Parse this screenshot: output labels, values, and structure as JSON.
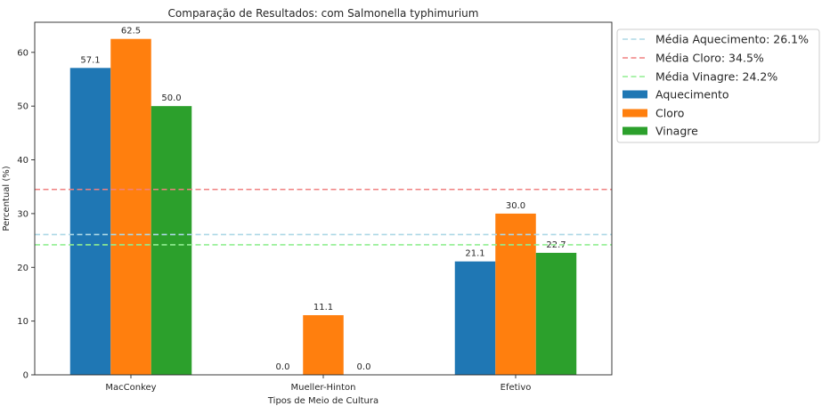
{
  "chart_data": {
    "type": "bar",
    "title": "Comparação de Resultados: com Salmonella typhimurium",
    "xlabel": "Tipos de Meio de Cultura",
    "ylabel": "Percentual (%)",
    "categories": [
      "MacConkey",
      "Mueller-Hinton",
      "Efetivo"
    ],
    "ylim": [
      0,
      65.6
    ],
    "yticks": [
      0,
      10,
      20,
      30,
      40,
      50,
      60
    ],
    "grid": false,
    "series": [
      {
        "name": "Aquecimento",
        "color": "#1f77b4",
        "values": [
          57.1,
          0.0,
          21.1
        ],
        "labels": [
          "57.1",
          "0.0",
          "21.1"
        ]
      },
      {
        "name": "Cloro",
        "color": "#ff7f0e",
        "values": [
          62.5,
          11.1,
          30.0
        ],
        "labels": [
          "62.5",
          "11.1",
          "30.0"
        ]
      },
      {
        "name": "Vinagre",
        "color": "#2ca02c",
        "values": [
          50.0,
          0.0,
          22.7
        ],
        "labels": [
          "50.0",
          "0.0",
          "22.7"
        ]
      }
    ],
    "reference_lines": [
      {
        "name": "Média Aquecimento: 26.1%",
        "value": 26.1,
        "color": "#add8e6",
        "style": "dashed"
      },
      {
        "name": "Média Cloro: 34.5%",
        "value": 34.5,
        "color": "#f08080",
        "style": "dashed"
      },
      {
        "name": "Média Vinagre: 24.2%",
        "value": 24.2,
        "color": "#90ee90",
        "style": "dashed"
      }
    ],
    "legend": {
      "placement": "outside-top-right",
      "entries": [
        "Média Aquecimento: 26.1%",
        "Média Cloro: 34.5%",
        "Média Vinagre: 24.2%",
        "Aquecimento",
        "Cloro",
        "Vinagre"
      ]
    }
  }
}
